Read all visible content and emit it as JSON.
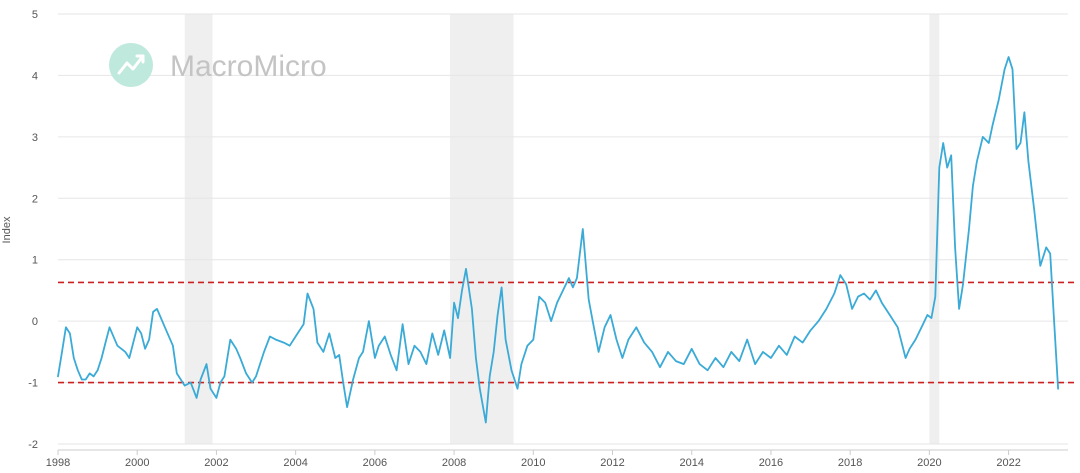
{
  "watermark": {
    "text": "MacroMicro",
    "icon": "macromicro-logo-icon"
  },
  "colors": {
    "series": "#3aaad6",
    "threshold": "#cc1f1f",
    "recession": "#efefef",
    "grid": "#e6e6e6"
  },
  "chart_data": {
    "type": "line",
    "title": "",
    "xlabel": "",
    "ylabel": "Index",
    "xlim": [
      1998,
      2023.5
    ],
    "ylim": [
      -2,
      5
    ],
    "x_ticks": [
      "1998",
      "2000",
      "2002",
      "2004",
      "2006",
      "2008",
      "2010",
      "2012",
      "2014",
      "2016",
      "2018",
      "2020",
      "2022"
    ],
    "y_ticks": [
      "5",
      "4",
      "3",
      "2",
      "1",
      "0",
      "-1",
      "-2"
    ],
    "grid": "horizontal",
    "reference_lines": [
      {
        "y": 0.63,
        "style": "dashed"
      },
      {
        "y": -1.0,
        "style": "dashed"
      }
    ],
    "shaded_periods": [
      [
        2001.2,
        2001.9
      ],
      [
        2007.9,
        2009.5
      ],
      [
        2020.0,
        2020.25
      ]
    ],
    "series": [
      {
        "x": [
          1998.0,
          1998.1,
          1998.2,
          1998.3,
          1998.4,
          1998.5,
          1998.6,
          1998.7,
          1998.8,
          1998.9,
          1999.0,
          1999.1,
          1999.2,
          1999.3,
          1999.5,
          1999.7,
          1999.8,
          2000.0,
          2000.1,
          2000.2,
          2000.3,
          2000.4,
          2000.5,
          2000.7,
          2000.9,
          2001.0,
          2001.2,
          2001.35,
          2001.5,
          2001.6,
          2001.75,
          2001.85,
          2002.0,
          2002.1,
          2002.2,
          2002.35,
          2002.5,
          2002.6,
          2002.75,
          2002.9,
          2003.0,
          2003.2,
          2003.35,
          2003.5,
          2003.7,
          2003.85,
          2004.0,
          2004.2,
          2004.3,
          2004.45,
          2004.55,
          2004.7,
          2004.85,
          2005.0,
          2005.1,
          2005.2,
          2005.3,
          2005.45,
          2005.6,
          2005.7,
          2005.85,
          2006.0,
          2006.1,
          2006.25,
          2006.4,
          2006.55,
          2006.7,
          2006.85,
          2007.0,
          2007.15,
          2007.3,
          2007.45,
          2007.6,
          2007.75,
          2007.9,
          2008.0,
          2008.1,
          2008.2,
          2008.3,
          2008.45,
          2008.55,
          2008.65,
          2008.8,
          2008.9,
          2009.0,
          2009.1,
          2009.2,
          2009.3,
          2009.45,
          2009.6,
          2009.7,
          2009.85,
          2010.0,
          2010.15,
          2010.3,
          2010.45,
          2010.6,
          2010.75,
          2010.9,
          2011.0,
          2011.1,
          2011.25,
          2011.4,
          2011.5,
          2011.65,
          2011.8,
          2011.95,
          2012.1,
          2012.25,
          2012.4,
          2012.6,
          2012.8,
          2013.0,
          2013.2,
          2013.4,
          2013.6,
          2013.8,
          2014.0,
          2014.2,
          2014.4,
          2014.6,
          2014.8,
          2015.0,
          2015.2,
          2015.4,
          2015.6,
          2015.8,
          2016.0,
          2016.2,
          2016.4,
          2016.6,
          2016.8,
          2017.0,
          2017.2,
          2017.4,
          2017.6,
          2017.75,
          2017.9,
          2018.05,
          2018.2,
          2018.35,
          2018.5,
          2018.65,
          2018.8,
          2019.0,
          2019.2,
          2019.4,
          2019.5,
          2019.65,
          2019.8,
          2019.95,
          2020.05,
          2020.15,
          2020.25,
          2020.35,
          2020.45,
          2020.55,
          2020.65,
          2020.75,
          2020.85,
          2021.0,
          2021.1,
          2021.2,
          2021.35,
          2021.5,
          2021.6,
          2021.75,
          2021.9,
          2022.0,
          2022.1,
          2022.2,
          2022.3,
          2022.4,
          2022.5,
          2022.65,
          2022.8,
          2022.95,
          2023.05,
          2023.15,
          2023.25
        ],
        "y": [
          -0.9,
          -0.5,
          -0.1,
          -0.2,
          -0.6,
          -0.8,
          -0.95,
          -0.95,
          -0.85,
          -0.9,
          -0.8,
          -0.6,
          -0.35,
          -0.1,
          -0.4,
          -0.5,
          -0.6,
          -0.1,
          -0.2,
          -0.45,
          -0.3,
          0.15,
          0.2,
          -0.1,
          -0.4,
          -0.85,
          -1.05,
          -1.0,
          -1.25,
          -0.95,
          -0.7,
          -1.1,
          -1.25,
          -1.0,
          -0.9,
          -0.3,
          -0.45,
          -0.6,
          -0.85,
          -1.0,
          -0.9,
          -0.5,
          -0.25,
          -0.3,
          -0.35,
          -0.4,
          -0.25,
          -0.05,
          0.45,
          0.2,
          -0.35,
          -0.5,
          -0.2,
          -0.6,
          -0.55,
          -1.0,
          -1.4,
          -0.95,
          -0.6,
          -0.5,
          0.0,
          -0.6,
          -0.4,
          -0.25,
          -0.55,
          -0.8,
          -0.05,
          -0.7,
          -0.4,
          -0.5,
          -0.7,
          -0.2,
          -0.55,
          -0.15,
          -0.6,
          0.3,
          0.05,
          0.5,
          0.85,
          0.2,
          -0.6,
          -1.1,
          -1.65,
          -0.9,
          -0.5,
          0.1,
          0.55,
          -0.3,
          -0.8,
          -1.1,
          -0.7,
          -0.4,
          -0.3,
          0.4,
          0.3,
          0.0,
          0.3,
          0.5,
          0.7,
          0.55,
          0.7,
          1.5,
          0.35,
          0.0,
          -0.5,
          -0.1,
          0.1,
          -0.3,
          -0.6,
          -0.3,
          -0.1,
          -0.35,
          -0.5,
          -0.75,
          -0.5,
          -0.65,
          -0.7,
          -0.45,
          -0.7,
          -0.8,
          -0.6,
          -0.75,
          -0.5,
          -0.65,
          -0.3,
          -0.7,
          -0.5,
          -0.6,
          -0.4,
          -0.55,
          -0.25,
          -0.35,
          -0.15,
          0.0,
          0.2,
          0.45,
          0.75,
          0.6,
          0.2,
          0.4,
          0.45,
          0.35,
          0.5,
          0.3,
          0.1,
          -0.1,
          -0.6,
          -0.45,
          -0.3,
          -0.1,
          0.1,
          0.05,
          0.4,
          2.5,
          2.9,
          2.5,
          2.7,
          1.2,
          0.2,
          0.6,
          1.5,
          2.2,
          2.6,
          3.0,
          2.9,
          3.2,
          3.6,
          4.1,
          4.3,
          4.1,
          2.8,
          2.9,
          3.4,
          2.6,
          1.8,
          0.9,
          1.2,
          1.1,
          0.0,
          -1.1
        ]
      }
    ]
  }
}
